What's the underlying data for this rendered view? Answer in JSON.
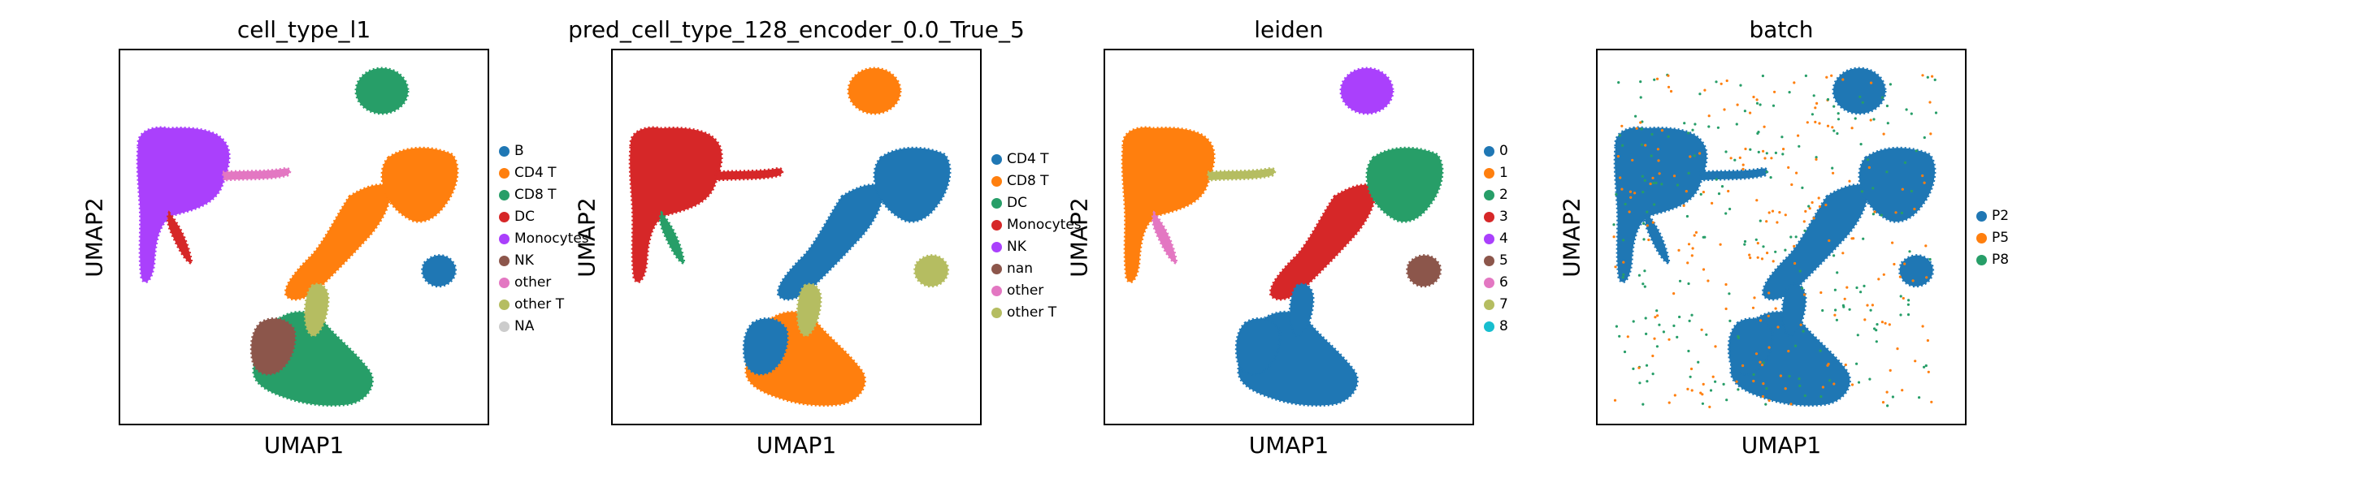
{
  "chart_data": [
    {
      "type": "scatter",
      "title": "cell_type_l1",
      "xlabel": "UMAP1",
      "ylabel": "UMAP2",
      "legend": [
        {
          "label": "B",
          "color": "#1f77b4"
        },
        {
          "label": "CD4 T",
          "color": "#ff7f0e"
        },
        {
          "label": "CD8 T",
          "color": "#279e68"
        },
        {
          "label": "DC",
          "color": "#d62728"
        },
        {
          "label": "Monocytes",
          "color": "#aa40fc"
        },
        {
          "label": "NK",
          "color": "#8c564b"
        },
        {
          "label": "other",
          "color": "#e377c2"
        },
        {
          "label": "other T",
          "color": "#b5bd61"
        },
        {
          "label": "NA",
          "color": "#cccccc"
        }
      ],
      "legend_position": "right",
      "regions": {
        "top_blob": "#279e68",
        "left_mass": "#aa40fc",
        "left_stream": "#e377c2",
        "diag": "#ff7f0e",
        "right_lobe": "#ff7f0e",
        "small_lobe": "#1f77b4",
        "bottom": "#279e68",
        "bottom_left": "#8c564b",
        "lower_mid": "#b5bd61",
        "left_small": "#d62728"
      }
    },
    {
      "type": "scatter",
      "title": "pred_cell_type_128_encoder_0.0_True_5",
      "xlabel": "UMAP1",
      "ylabel": "UMAP2",
      "legend": [
        {
          "label": "CD4 T",
          "color": "#1f77b4"
        },
        {
          "label": "CD8 T",
          "color": "#ff7f0e"
        },
        {
          "label": "DC",
          "color": "#279e68"
        },
        {
          "label": "Monocytes",
          "color": "#d62728"
        },
        {
          "label": "NK",
          "color": "#aa40fc"
        },
        {
          "label": "nan",
          "color": "#8c564b"
        },
        {
          "label": "other",
          "color": "#e377c2"
        },
        {
          "label": "other T",
          "color": "#b5bd61"
        }
      ],
      "legend_position": "right",
      "regions": {
        "top_blob": "#ff7f0e",
        "left_mass": "#d62728",
        "left_stream": "#d62728",
        "diag": "#1f77b4",
        "right_lobe": "#1f77b4",
        "small_lobe": "#b5bd61",
        "bottom": "#ff7f0e",
        "bottom_left": "#1f77b4",
        "lower_mid": "#b5bd61",
        "left_small": "#279e68"
      }
    },
    {
      "type": "scatter",
      "title": "leiden",
      "xlabel": "UMAP1",
      "ylabel": "UMAP2",
      "legend": [
        {
          "label": "0",
          "color": "#1f77b4"
        },
        {
          "label": "1",
          "color": "#ff7f0e"
        },
        {
          "label": "2",
          "color": "#279e68"
        },
        {
          "label": "3",
          "color": "#d62728"
        },
        {
          "label": "4",
          "color": "#aa40fc"
        },
        {
          "label": "5",
          "color": "#8c564b"
        },
        {
          "label": "6",
          "color": "#e377c2"
        },
        {
          "label": "7",
          "color": "#b5bd61"
        },
        {
          "label": "8",
          "color": "#17becf"
        }
      ],
      "legend_position": "right",
      "regions": {
        "top_blob": "#aa40fc",
        "left_mass": "#ff7f0e",
        "left_stream": "#b5bd61",
        "diag": "#d62728",
        "right_lobe": "#279e68",
        "small_lobe": "#8c564b",
        "bottom": "#1f77b4",
        "bottom_left": "#1f77b4",
        "lower_mid": "#1f77b4",
        "left_small": "#e377c2"
      }
    },
    {
      "type": "scatter",
      "title": "batch",
      "xlabel": "UMAP1",
      "ylabel": "UMAP2",
      "legend": [
        {
          "label": "P2",
          "color": "#1f77b4"
        },
        {
          "label": "P5",
          "color": "#ff7f0e"
        },
        {
          "label": "P8",
          "color": "#279e68"
        }
      ],
      "legend_position": "right",
      "regions": {
        "top_blob": "#1f77b4",
        "left_mass": "#1f77b4",
        "left_stream": "#1f77b4",
        "diag": "#1f77b4",
        "right_lobe": "#1f77b4",
        "small_lobe": "#1f77b4",
        "bottom": "#1f77b4",
        "bottom_left": "#1f77b4",
        "lower_mid": "#1f77b4",
        "left_small": "#1f77b4"
      }
    }
  ]
}
